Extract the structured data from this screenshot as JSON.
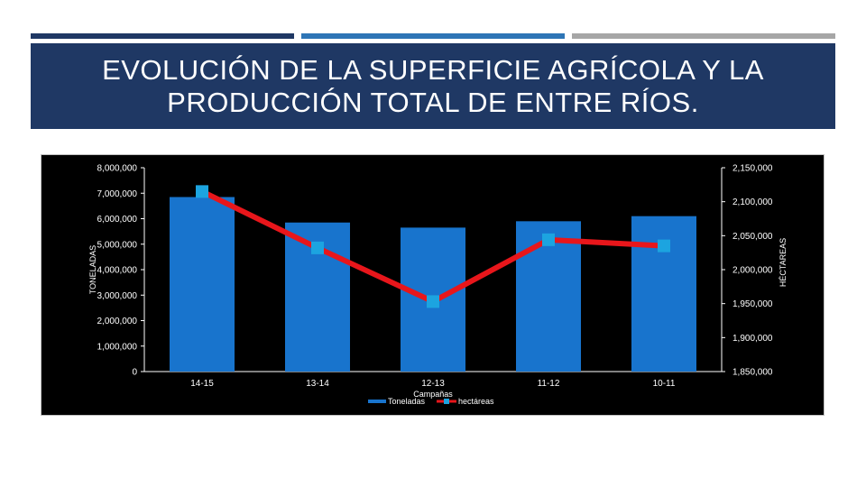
{
  "slide": {
    "title": "EVOLUCIÓN DE LA SUPERFICIE AGRÍCOLA Y LA\nPRODUCCIÓN TOTAL  DE ENTRE RÍOS.",
    "stripe_colors": [
      "#1f3864",
      "#2e75b6",
      "#a6a6a6"
    ],
    "title_bg": "#1f3864"
  },
  "chart_data": {
    "type": "bar",
    "categories": [
      "14-15",
      "13-14",
      "12-13",
      "11-12",
      "10-11"
    ],
    "xlabel": "Campañas",
    "ylabel": "TONELADAS",
    "y2label": "HÉCTAREAS",
    "ylim": [
      0,
      8000000
    ],
    "y2lim": [
      1850000,
      2150000
    ],
    "y_ticks": [
      "0",
      "1,000,000",
      "2,000,000",
      "3,000,000",
      "4,000,000",
      "5,000,000",
      "6,000,000",
      "7,000,000",
      "8,000,000"
    ],
    "y2_ticks": [
      "1,850,000",
      "1,900,000",
      "1,950,000",
      "2,000,000",
      "2,050,000",
      "2,100,000",
      "2,150,000"
    ],
    "series": [
      {
        "name": "Toneladas",
        "type": "bar",
        "axis": "left",
        "color": "#1874cd",
        "values": [
          6850000,
          5850000,
          5650000,
          5900000,
          6100000
        ]
      },
      {
        "name": "hectáreas",
        "type": "line",
        "axis": "right",
        "color": "#e8161b",
        "marker_color": "#1ca4e0",
        "values": [
          2115000,
          2032000,
          1953000,
          2044000,
          2035000
        ]
      }
    ],
    "legend_position": "bottom",
    "background": "#000000"
  }
}
